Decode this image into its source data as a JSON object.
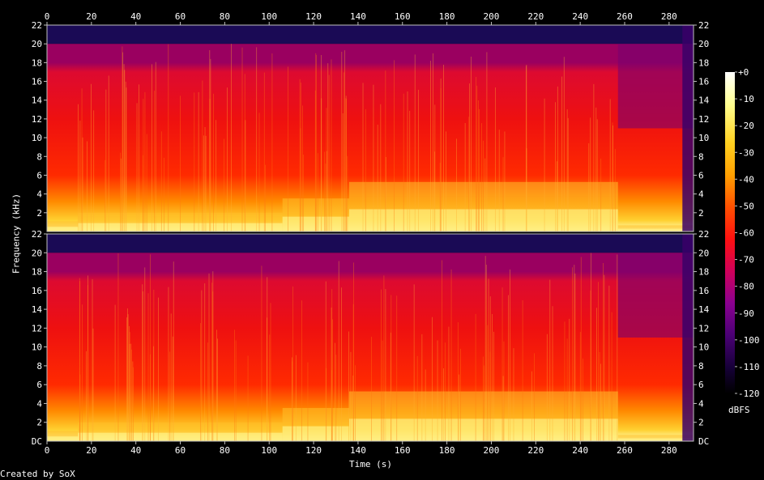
{
  "chart_data": {
    "type": "heatmap",
    "title": "",
    "xlabel": "Time (s)",
    "ylabel": "Frequency (kHz)",
    "footer": "Created by SoX",
    "x_ticks": [
      "0",
      "20",
      "40",
      "60",
      "80",
      "100",
      "120",
      "140",
      "160",
      "180",
      "200",
      "220",
      "240",
      "260",
      "280"
    ],
    "xlim": [
      0,
      291
    ],
    "channels": [
      {
        "name": "",
        "y_ticks": [
          "22",
          "20",
          "18",
          "16",
          "14",
          "12",
          "10",
          "8",
          "6",
          "4",
          "2"
        ],
        "bottom_label": ""
      },
      {
        "name": "",
        "y_ticks": [
          "22",
          "20",
          "18",
          "16",
          "14",
          "12",
          "10",
          "8",
          "6",
          "4",
          "2"
        ],
        "bottom_label": "DC"
      }
    ],
    "ylim_khz": [
      0,
      22
    ],
    "colorbar": {
      "label": "dBFS",
      "ticks": [
        "+0",
        "-10",
        "-20",
        "-30",
        "-40",
        "-50",
        "-60",
        "-70",
        "-80",
        "-90",
        "-100",
        "-110",
        "-120"
      ],
      "range_db": [
        -120,
        0
      ]
    },
    "segments": [
      {
        "start_s": 0,
        "end_s": 14,
        "energy": "low-mid"
      },
      {
        "start_s": 14,
        "end_s": 106,
        "energy": "mid"
      },
      {
        "start_s": 106,
        "end_s": 136,
        "energy": "high"
      },
      {
        "start_s": 136,
        "end_s": 257,
        "energy": "very-high"
      },
      {
        "start_s": 257,
        "end_s": 291,
        "energy": "fading"
      }
    ],
    "bandwidth_cutoff_khz": 20,
    "colors": {
      "background": "#000000",
      "axis": "#c0c0c0",
      "text": "#ffffff",
      "palette": [
        "#000000",
        "#1a0040",
        "#400070",
        "#7a0090",
        "#b0007a",
        "#e0003a",
        "#ff2000",
        "#ff6000",
        "#ffa000",
        "#ffd020",
        "#ffff90",
        "#ffffff"
      ]
    }
  }
}
